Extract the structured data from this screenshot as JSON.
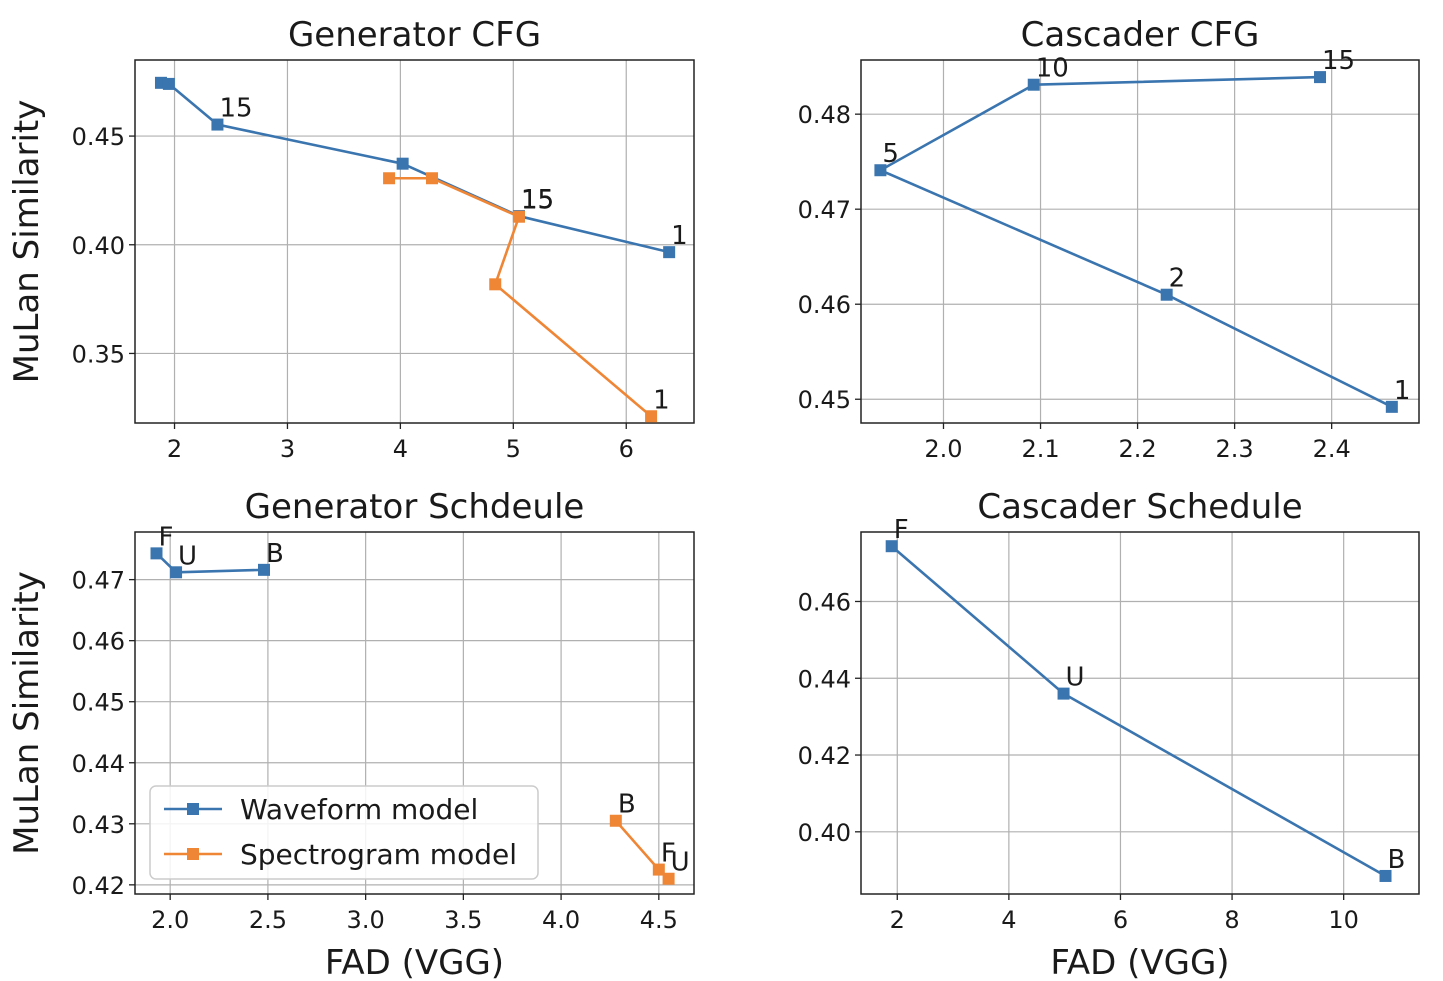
{
  "colors": {
    "waveform": "#3b75af",
    "spectrogram": "#ef8636"
  },
  "legend": {
    "placement": "lower-left",
    "entries": [
      "Waveform model",
      "Spectrogram model"
    ]
  },
  "chart_data": [
    {
      "type": "line",
      "title": "Generator CFG",
      "xlabel": "",
      "ylabel": "MuLan Similarity",
      "xlim": [
        1.65,
        6.6
      ],
      "ylim": [
        0.318,
        0.485
      ],
      "xticks": [
        2,
        3,
        4,
        5,
        6
      ],
      "yticks": [
        0.35,
        0.4,
        0.45
      ],
      "ytick_labels": [
        "0.35",
        "0.40",
        "0.45"
      ],
      "grid": true,
      "series": [
        {
          "name": "Waveform model",
          "color": "#3b75af",
          "points": [
            {
              "x": 1.88,
              "y": 0.4745,
              "label": ""
            },
            {
              "x": 1.95,
              "y": 0.474,
              "label": ""
            },
            {
              "x": 2.38,
              "y": 0.4553,
              "label": "15"
            },
            {
              "x": 4.02,
              "y": 0.4373,
              "label": ""
            },
            {
              "x": 5.05,
              "y": 0.4132,
              "label": "15"
            },
            {
              "x": 6.38,
              "y": 0.3966,
              "label": "1"
            }
          ]
        },
        {
          "name": "Spectrogram model",
          "color": "#ef8636",
          "points": [
            {
              "x": 3.9,
              "y": 0.4306,
              "label": ""
            },
            {
              "x": 4.28,
              "y": 0.4306,
              "label": ""
            },
            {
              "x": 5.05,
              "y": 0.4129,
              "label": "15"
            },
            {
              "x": 4.84,
              "y": 0.3818,
              "label": ""
            },
            {
              "x": 6.22,
              "y": 0.3211,
              "label": "1"
            }
          ]
        }
      ]
    },
    {
      "type": "line",
      "title": "Cascader CFG",
      "xlabel": "",
      "ylabel": "",
      "xlim": [
        1.915,
        2.49
      ],
      "ylim": [
        0.4475,
        0.4857
      ],
      "xticks": [
        2.0,
        2.1,
        2.2,
        2.3,
        2.4
      ],
      "xtick_labels": [
        "2.0",
        "2.1",
        "2.2",
        "2.3",
        "2.4"
      ],
      "yticks": [
        0.45,
        0.46,
        0.47,
        0.48
      ],
      "ytick_labels": [
        "0.45",
        "0.46",
        "0.47",
        "0.48"
      ],
      "grid": true,
      "series": [
        {
          "name": "Waveform model",
          "color": "#3b75af",
          "points": [
            {
              "x": 2.462,
              "y": 0.4492,
              "label": "1"
            },
            {
              "x": 2.23,
              "y": 0.461,
              "label": "2"
            },
            {
              "x": 1.935,
              "y": 0.4741,
              "label": "5"
            },
            {
              "x": 2.093,
              "y": 0.4831,
              "label": "10"
            },
            {
              "x": 2.388,
              "y": 0.4839,
              "label": "15"
            }
          ]
        }
      ]
    },
    {
      "type": "line",
      "title": "Generator Schdeule",
      "xlabel": "FAD (VGG)",
      "ylabel": "MuLan Similarity",
      "xlim": [
        1.82,
        4.68
      ],
      "ylim": [
        0.4185,
        0.4778
      ],
      "xticks": [
        2.0,
        2.5,
        3.0,
        3.5,
        4.0,
        4.5
      ],
      "xtick_labels": [
        "2.0",
        "2.5",
        "3.0",
        "3.5",
        "4.0",
        "4.5"
      ],
      "yticks": [
        0.42,
        0.43,
        0.44,
        0.45,
        0.46,
        0.47
      ],
      "ytick_labels": [
        "0.42",
        "0.43",
        "0.44",
        "0.45",
        "0.46",
        "0.47"
      ],
      "grid": true,
      "series": [
        {
          "name": "Waveform model",
          "color": "#3b75af",
          "points": [
            {
              "x": 1.93,
              "y": 0.4743,
              "label": "F"
            },
            {
              "x": 2.03,
              "y": 0.4712,
              "label": "U"
            },
            {
              "x": 2.48,
              "y": 0.4716,
              "label": "B"
            }
          ]
        },
        {
          "name": "Spectrogram model",
          "color": "#ef8636",
          "points": [
            {
              "x": 4.28,
              "y": 0.4305,
              "label": "B"
            },
            {
              "x": 4.5,
              "y": 0.4225,
              "label": "F"
            },
            {
              "x": 4.55,
              "y": 0.421,
              "label": "U"
            }
          ]
        }
      ]
    },
    {
      "type": "line",
      "title": "Cascader Schedule",
      "xlabel": "FAD (VGG)",
      "ylabel": "",
      "xlim": [
        1.35,
        11.35
      ],
      "ylim": [
        0.3838,
        0.4781
      ],
      "xticks": [
        2,
        4,
        6,
        8,
        10
      ],
      "yticks": [
        0.4,
        0.42,
        0.44,
        0.46
      ],
      "ytick_labels": [
        "0.40",
        "0.42",
        "0.44",
        "0.46"
      ],
      "grid": true,
      "series": [
        {
          "name": "Waveform model",
          "color": "#3b75af",
          "points": [
            {
              "x": 1.9,
              "y": 0.4744,
              "label": "F"
            },
            {
              "x": 4.98,
              "y": 0.436,
              "label": "U"
            },
            {
              "x": 10.75,
              "y": 0.3885,
              "label": "B"
            }
          ]
        }
      ]
    }
  ]
}
